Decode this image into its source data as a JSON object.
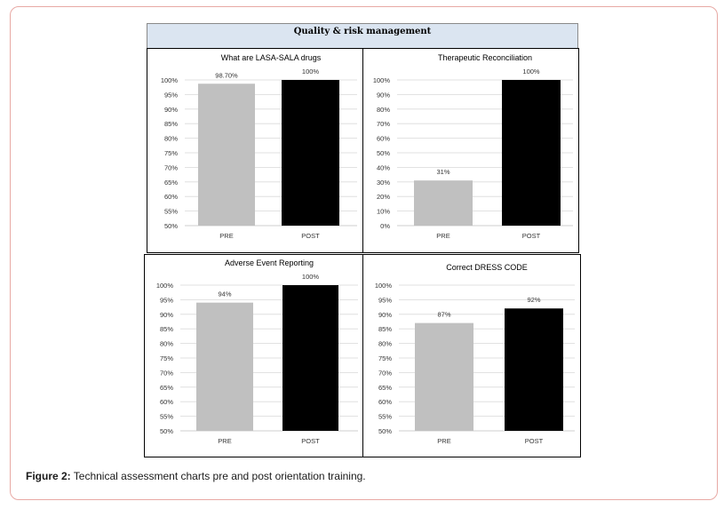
{
  "banner": {
    "title": "Quality & risk management"
  },
  "caption": {
    "label": "Figure 2:",
    "text": " Technical assessment charts pre and post orientation training."
  },
  "colors": {
    "pre": "#c0c0c0",
    "post": "#000000",
    "grid": "#d9d9d9",
    "text": "#333333"
  },
  "chart_data": [
    {
      "type": "bar",
      "title": "What are LASA-SALA drugs",
      "categories": [
        "PRE",
        "POST"
      ],
      "values": [
        98.7,
        100
      ],
      "data_labels": [
        "98.70%",
        "100%"
      ],
      "ylim": [
        50,
        100
      ],
      "yticks": [
        "50%",
        "55%",
        "60%",
        "65%",
        "70%",
        "75%",
        "80%",
        "85%",
        "90%",
        "95%",
        "100%"
      ],
      "ytick_values": [
        50,
        55,
        60,
        65,
        70,
        75,
        80,
        85,
        90,
        95,
        100
      ],
      "grid": true
    },
    {
      "type": "bar",
      "title": "Therapeutic Reconciliation",
      "categories": [
        "PRE",
        "POST"
      ],
      "values": [
        31,
        100
      ],
      "data_labels": [
        "31%",
        "100%"
      ],
      "ylim": [
        0,
        100
      ],
      "yticks": [
        "0%",
        "10%",
        "20%",
        "30%",
        "40%",
        "50%",
        "60%",
        "70%",
        "80%",
        "90%",
        "100%"
      ],
      "ytick_values": [
        0,
        10,
        20,
        30,
        40,
        50,
        60,
        70,
        80,
        90,
        100
      ],
      "grid": true
    },
    {
      "type": "bar",
      "title": "Adverse Event Reporting",
      "categories": [
        "PRE",
        "POST"
      ],
      "values": [
        94,
        100
      ],
      "data_labels": [
        "94%",
        "100%"
      ],
      "ylim": [
        50,
        100
      ],
      "yticks": [
        "50%",
        "55%",
        "60%",
        "65%",
        "70%",
        "75%",
        "80%",
        "85%",
        "90%",
        "95%",
        "100%"
      ],
      "ytick_values": [
        50,
        55,
        60,
        65,
        70,
        75,
        80,
        85,
        90,
        95,
        100
      ],
      "grid": true
    },
    {
      "type": "bar",
      "title": "Correct DRESS CODE",
      "categories": [
        "PRE",
        "POST"
      ],
      "values": [
        87,
        92
      ],
      "data_labels": [
        "87%",
        "92%"
      ],
      "ylim": [
        50,
        100
      ],
      "yticks": [
        "50%",
        "55%",
        "60%",
        "65%",
        "70%",
        "75%",
        "80%",
        "85%",
        "90%",
        "95%",
        "100%"
      ],
      "ytick_values": [
        50,
        55,
        60,
        65,
        70,
        75,
        80,
        85,
        90,
        95,
        100
      ],
      "grid": true
    }
  ]
}
